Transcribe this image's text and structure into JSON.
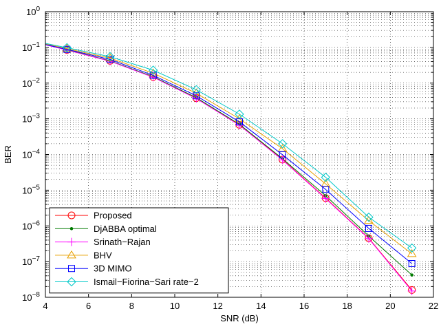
{
  "chart_data": {
    "type": "line",
    "title": "",
    "xlabel": "SNR (dB)",
    "ylabel": "BER",
    "xlim": [
      4,
      22
    ],
    "ylim": [
      1e-08,
      1
    ],
    "yscale": "log",
    "grid": true,
    "legend_position": "bottom-left",
    "x_ticks": [
      4,
      6,
      8,
      10,
      12,
      14,
      16,
      18,
      20,
      22
    ],
    "x_tick_labels": [
      "4",
      "6",
      "8",
      "10",
      "12",
      "14",
      "16",
      "18",
      "20",
      "22"
    ],
    "y_ticks": [
      0,
      -1,
      -2,
      -3,
      -4,
      -5,
      -6,
      -7,
      -8
    ],
    "y_tick_mantissa": "10",
    "y_tick_exponents": [
      "0",
      "−1",
      "−2",
      "−3",
      "−4",
      "−5",
      "−6",
      "−7",
      "−8"
    ],
    "series": [
      {
        "name": "Proposed",
        "color": "#ff0000",
        "marker": "circle",
        "x": [
          4,
          5,
          7,
          9,
          11,
          13,
          15,
          17,
          19,
          21
        ],
        "y": [
          0.12,
          0.085,
          0.042,
          0.0148,
          0.0038,
          0.00068,
          7.2e-05,
          6e-06,
          4.5e-07,
          1.6e-08
        ]
      },
      {
        "name": "DjABBA optimal",
        "color": "#007a00",
        "marker": "dot",
        "x": [
          4,
          5,
          7,
          9,
          11,
          13,
          15,
          17,
          19,
          21
        ],
        "y": [
          0.12,
          0.085,
          0.042,
          0.0152,
          0.0039,
          0.0007,
          7.6e-05,
          7e-06,
          5.2e-07,
          4.2e-08
        ]
      },
      {
        "name": "Srinath−Rajan",
        "color": "#ff00ff",
        "marker": "plus",
        "x": [
          4,
          5,
          7,
          9,
          11,
          13,
          15,
          17,
          19,
          21
        ],
        "y": [
          0.118,
          0.084,
          0.041,
          0.0146,
          0.0037,
          0.00066,
          7e-05,
          5.8e-06,
          4.4e-07,
          1.5e-08
        ]
      },
      {
        "name": "BHV",
        "color": "#e8a000",
        "marker": "triangle",
        "x": [
          4,
          5,
          7,
          9,
          11,
          13,
          15,
          17,
          19,
          21
        ],
        "y": [
          0.125,
          0.092,
          0.05,
          0.019,
          0.0052,
          0.001,
          0.000145,
          1.5e-05,
          1.4e-06,
          1.65e-07
        ]
      },
      {
        "name": "3D MIMO",
        "color": "#0000ff",
        "marker": "square",
        "x": [
          4,
          5,
          7,
          9,
          11,
          13,
          15,
          17,
          19,
          21
        ],
        "y": [
          0.12,
          0.088,
          0.046,
          0.0165,
          0.0044,
          0.00082,
          9.8e-05,
          1.05e-05,
          8.5e-07,
          8.8e-08
        ]
      },
      {
        "name": "Ismail−Fiorina−Sari rate−2",
        "color": "#00c8c8",
        "marker": "diamond",
        "x": [
          4,
          5,
          7,
          9,
          11,
          13,
          15,
          17,
          19,
          21
        ],
        "y": [
          0.13,
          0.098,
          0.055,
          0.023,
          0.0065,
          0.00135,
          0.0002,
          2.3e-05,
          1.75e-06,
          2.4e-07
        ]
      }
    ]
  }
}
